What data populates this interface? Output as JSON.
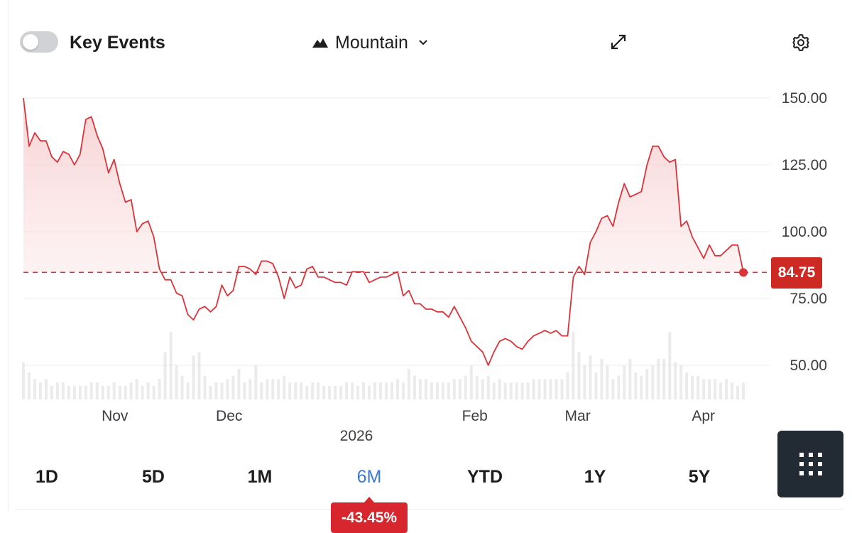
{
  "toolbar": {
    "key_events_label": "Key Events",
    "key_events_enabled": false,
    "chart_type_label": "Mountain",
    "icons": [
      "toggle-switch",
      "mountain-icon",
      "chevron-down-icon",
      "expand-icon",
      "gear-icon"
    ]
  },
  "current_price_label": "84.75",
  "change_label": "-43.45%",
  "range_buttons": [
    {
      "label": "1D",
      "active": false
    },
    {
      "label": "5D",
      "active": false
    },
    {
      "label": "1M",
      "active": false
    },
    {
      "label": "6M",
      "active": true
    },
    {
      "label": "YTD",
      "active": false
    },
    {
      "label": "1Y",
      "active": false
    },
    {
      "label": "5Y",
      "active": false
    }
  ],
  "grid_button_icon": "grid-dots-icon",
  "colors": {
    "line": "#d9343a",
    "area_top": "#f6c9ca",
    "price_badge": "#cc2a23",
    "change_badge": "#d7262d",
    "active_range": "#3d78d8",
    "grid_button_bg": "#222a33",
    "volume_bars": "#e2e2e2"
  },
  "chart_data": {
    "type": "area",
    "title": "",
    "xlabel": "",
    "ylabel": "",
    "ylim": [
      40,
      153
    ],
    "y_ticks": [
      50,
      75,
      100,
      125,
      150
    ],
    "y_tick_labels": [
      "50.00",
      "75.00",
      "100.00",
      "125.00",
      "150.00"
    ],
    "x_tick_labels": [
      "Nov",
      "Dec",
      "Feb",
      "Mar",
      "Apr"
    ],
    "x_year_label": "2026",
    "x_range": [
      0,
      126
    ],
    "x_ticks": [
      16,
      36,
      79,
      97,
      119
    ],
    "reference_line": 84.75,
    "grid": true,
    "series": [
      {
        "values": [
          150,
          132,
          137,
          134,
          134,
          128,
          126,
          130,
          129,
          125,
          129,
          142,
          143,
          136,
          131,
          122,
          127,
          118,
          111,
          112,
          100,
          103,
          104,
          98,
          86,
          82,
          82,
          77,
          76,
          69,
          67,
          71,
          72,
          70,
          72,
          80,
          76,
          78,
          87,
          87,
          86,
          84,
          89,
          89,
          88,
          83,
          75,
          83,
          79,
          80,
          86,
          87,
          83,
          83,
          82,
          81,
          81,
          80,
          85,
          85,
          85,
          81,
          82,
          83,
          83,
          84,
          85,
          76,
          78,
          73,
          73,
          71,
          71,
          70,
          70,
          68,
          72,
          68,
          64,
          59,
          57,
          55,
          50,
          55,
          59,
          60,
          59,
          57,
          56,
          59,
          61,
          62,
          63,
          62,
          63,
          61,
          61,
          83,
          87,
          84,
          96,
          100,
          105,
          106,
          102,
          111,
          118,
          113,
          114,
          115,
          125,
          132,
          132,
          128,
          126,
          127,
          102,
          104,
          98,
          94,
          90,
          95,
          91,
          91,
          93,
          95,
          95,
          84.75
        ]
      }
    ],
    "volume": [
      11,
      8,
      6,
      5,
      6,
      4,
      5,
      5,
      4,
      4,
      4,
      4,
      5,
      5,
      4,
      4,
      5,
      4,
      4,
      5,
      6,
      4,
      5,
      4,
      6,
      14,
      20,
      10,
      7,
      5,
      13,
      14,
      7,
      4,
      5,
      5,
      6,
      7,
      9,
      5,
      6,
      10,
      5,
      6,
      6,
      6,
      7,
      5,
      5,
      5,
      4,
      5,
      5,
      4,
      4,
      4,
      4,
      5,
      5,
      4,
      5,
      4,
      5,
      5,
      5,
      5,
      6,
      5,
      9,
      7,
      6,
      6,
      5,
      5,
      5,
      5,
      6,
      6,
      7,
      10,
      7,
      6,
      7,
      5,
      6,
      5,
      5,
      5,
      5,
      5,
      6,
      6,
      6,
      6,
      6,
      6,
      8,
      20,
      14,
      10,
      13,
      8,
      12,
      10,
      6,
      7,
      10,
      12,
      8,
      7,
      9,
      10,
      12,
      12,
      20,
      11,
      10,
      8,
      7,
      7,
      6,
      6,
      6,
      5,
      6,
      5,
      4,
      5
    ]
  }
}
